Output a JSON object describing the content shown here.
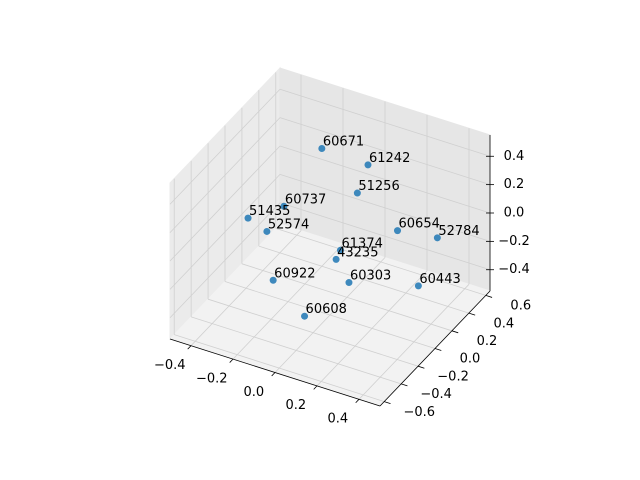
{
  "chart_data": {
    "type": "scatter3d",
    "labels": [
      "60671",
      "61242",
      "51256",
      "60737",
      "51435",
      "52574",
      "60654",
      "52784",
      "61374",
      "43235",
      "60922",
      "60303",
      "60443",
      "60608"
    ],
    "x": [
      -0.2,
      0.06,
      0.09,
      -0.3,
      -0.35,
      -0.22,
      0.12,
      0.35,
      0.05,
      0.15,
      -0.19,
      0.05,
      0.3,
      0.04
    ],
    "y": [
      0.4,
      0.3,
      0.1,
      0.2,
      -0.1,
      -0.2,
      0.5,
      0.4,
      0,
      -0.3,
      -0.2,
      0.1,
      0.3,
      -0.4
    ],
    "z": [
      0.28,
      0.35,
      0.29,
      -0.05,
      0.03,
      0.06,
      -0.21,
      -0.09,
      -0.07,
      0.1,
      -0.27,
      -0.36,
      -0.39,
      -0.29
    ],
    "color": "#1f77b4",
    "xlim": [
      -0.5,
      0.5
    ],
    "ylim": [
      -0.65,
      0.65
    ],
    "zlim": [
      -0.55,
      0.55
    ],
    "xticks": [
      {
        "value": -0.4,
        "label": "−0.4"
      },
      {
        "value": -0.2,
        "label": "−0.2"
      },
      {
        "value": 0,
        "label": "0.0"
      },
      0.2,
      0.4
    ],
    "yticks": [
      {
        "value": -0.6,
        "label": "−0.6"
      },
      {
        "value": -0.4,
        "label": "−0.4"
      },
      {
        "value": -0.2,
        "label": "−0.2"
      },
      {
        "value": 0,
        "label": "0.0"
      },
      0.2,
      0.4,
      0.6
    ],
    "zticks": [
      {
        "value": -0.4,
        "label": "−0.4"
      },
      {
        "value": -0.2,
        "label": "−0.2"
      },
      {
        "value": 0,
        "label": "0.0"
      },
      0.2,
      0.4
    ],
    "grid": true
  }
}
